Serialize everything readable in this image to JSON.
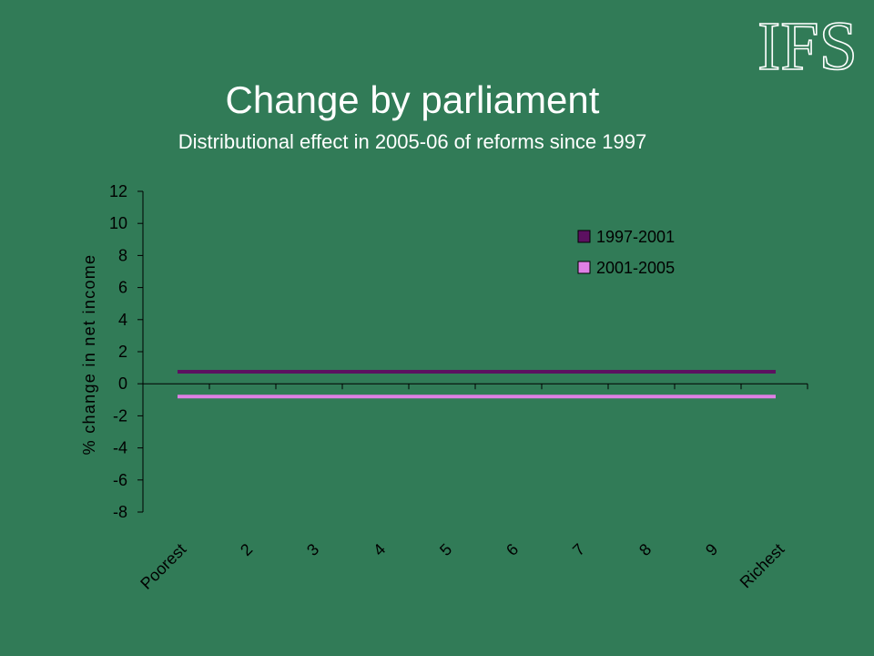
{
  "logo": {
    "text": "IFS"
  },
  "chart_data": {
    "type": "line",
    "title": "Change by parliament",
    "subtitle": "Distributional effect in 2005-06 of reforms since 1997",
    "ylabel": "% change in net income",
    "xlabel": "",
    "categories": [
      "Poorest",
      "2",
      "3",
      "4",
      "5",
      "6",
      "7",
      "8",
      "9",
      "Richest"
    ],
    "yticks": [
      "12",
      "10",
      "8",
      "6",
      "4",
      "2",
      "0",
      "-2",
      "-4",
      "-6",
      "-8"
    ],
    "ylim": [
      -8,
      12
    ],
    "grid": false,
    "legend_position": "top-right",
    "series": [
      {
        "name": "1997-2001",
        "color": "#5c1060",
        "values": [
          0.75,
          0.75,
          0.75,
          0.75,
          0.75,
          0.75,
          0.75,
          0.75,
          0.75,
          0.75
        ]
      },
      {
        "name": "2001-2005",
        "color": "#e080e6",
        "values": [
          -0.8,
          -0.8,
          -0.8,
          -0.8,
          -0.8,
          -0.8,
          -0.8,
          -0.8,
          -0.8,
          -0.8
        ]
      }
    ]
  }
}
